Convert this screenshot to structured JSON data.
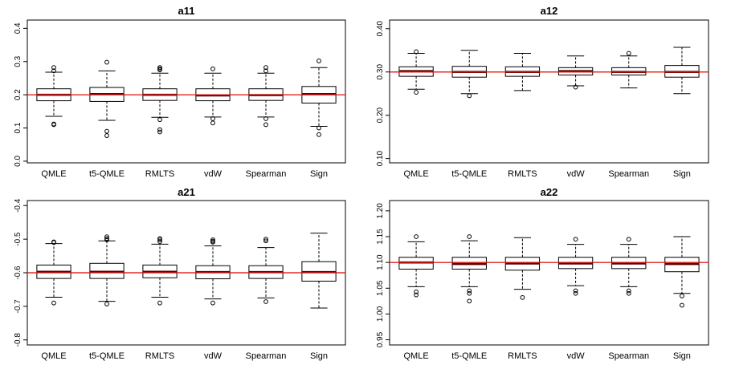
{
  "chart_data": [
    {
      "type": "boxplot",
      "title": "a11",
      "categories": [
        "QMLE",
        "t5-QMLE",
        "RMLTS",
        "vdW",
        "Spearman",
        "Sign"
      ],
      "ylim": [
        -0.005,
        0.425
      ],
      "yticks": [
        "0.0",
        "0.1",
        "0.2",
        "0.3",
        "0.4"
      ],
      "reference_line": 0.2,
      "boxes": [
        {
          "min": 0.135,
          "q1": 0.182,
          "median": 0.2,
          "q3": 0.218,
          "max": 0.268,
          "outliers": [
            0.282,
            0.272,
            0.112,
            0.11
          ]
        },
        {
          "min": 0.123,
          "q1": 0.18,
          "median": 0.202,
          "q3": 0.222,
          "max": 0.272,
          "outliers": [
            0.298,
            0.09,
            0.077
          ]
        },
        {
          "min": 0.132,
          "q1": 0.183,
          "median": 0.2,
          "q3": 0.218,
          "max": 0.265,
          "outliers": [
            0.282,
            0.278,
            0.275,
            0.125,
            0.095,
            0.088
          ]
        },
        {
          "min": 0.133,
          "q1": 0.182,
          "median": 0.198,
          "q3": 0.218,
          "max": 0.265,
          "outliers": [
            0.278,
            0.128,
            0.115
          ]
        },
        {
          "min": 0.133,
          "q1": 0.183,
          "median": 0.199,
          "q3": 0.218,
          "max": 0.265,
          "outliers": [
            0.282,
            0.272,
            0.128,
            0.11
          ]
        },
        {
          "min": 0.105,
          "q1": 0.175,
          "median": 0.202,
          "q3": 0.225,
          "max": 0.282,
          "outliers": [
            0.302,
            0.1,
            0.08
          ]
        }
      ]
    },
    {
      "type": "boxplot",
      "title": "a12",
      "categories": [
        "QMLE",
        "t5-QMLE",
        "RMLTS",
        "vdW",
        "Spearman",
        "Sign"
      ],
      "ylim": [
        0.09,
        0.42
      ],
      "yticks": [
        "0.10",
        "0.20",
        "0.30",
        "0.40"
      ],
      "reference_line": 0.3,
      "boxes": [
        {
          "min": 0.26,
          "q1": 0.29,
          "median": 0.302,
          "q3": 0.312,
          "max": 0.343,
          "outliers": [
            0.347,
            0.253
          ]
        },
        {
          "min": 0.25,
          "q1": 0.288,
          "median": 0.3,
          "q3": 0.313,
          "max": 0.35,
          "outliers": [
            0.245
          ]
        },
        {
          "min": 0.257,
          "q1": 0.29,
          "median": 0.3,
          "q3": 0.312,
          "max": 0.343,
          "outliers": []
        },
        {
          "min": 0.268,
          "q1": 0.293,
          "median": 0.302,
          "q3": 0.31,
          "max": 0.337,
          "outliers": [
            0.265
          ]
        },
        {
          "min": 0.263,
          "q1": 0.293,
          "median": 0.3,
          "q3": 0.31,
          "max": 0.337,
          "outliers": [
            0.343
          ]
        },
        {
          "min": 0.25,
          "q1": 0.288,
          "median": 0.3,
          "q3": 0.315,
          "max": 0.357,
          "outliers": []
        }
      ]
    },
    {
      "type": "boxplot",
      "title": "a21",
      "categories": [
        "QMLE",
        "t5-QMLE",
        "RMLTS",
        "vdW",
        "Spearman",
        "Sign"
      ],
      "ylim": [
        -0.815,
        -0.385
      ],
      "yticks": [
        "-0.8",
        "-0.7",
        "-0.6",
        "-0.5",
        "-0.4"
      ],
      "reference_line": -0.6,
      "boxes": [
        {
          "min": -0.673,
          "q1": -0.617,
          "median": -0.597,
          "q3": -0.577,
          "max": -0.513,
          "outliers": [
            -0.51,
            -0.508,
            -0.69
          ]
        },
        {
          "min": -0.685,
          "q1": -0.617,
          "median": -0.597,
          "q3": -0.572,
          "max": -0.505,
          "outliers": [
            -0.493,
            -0.498,
            -0.502,
            -0.693
          ]
        },
        {
          "min": -0.673,
          "q1": -0.615,
          "median": -0.597,
          "q3": -0.577,
          "max": -0.515,
          "outliers": [
            -0.498,
            -0.502,
            -0.507,
            -0.69
          ]
        },
        {
          "min": -0.678,
          "q1": -0.618,
          "median": -0.598,
          "q3": -0.579,
          "max": -0.52,
          "outliers": [
            -0.502,
            -0.506,
            -0.509,
            -0.69
          ]
        },
        {
          "min": -0.675,
          "q1": -0.617,
          "median": -0.598,
          "q3": -0.579,
          "max": -0.525,
          "outliers": [
            -0.5,
            -0.505,
            -0.686
          ]
        },
        {
          "min": -0.705,
          "q1": -0.625,
          "median": -0.598,
          "q3": -0.567,
          "max": -0.482,
          "outliers": []
        }
      ]
    },
    {
      "type": "boxplot",
      "title": "a22",
      "categories": [
        "QMLE",
        "t5-QMLE",
        "RMLTS",
        "vdW",
        "Spearman",
        "Sign"
      ],
      "ylim": [
        0.94,
        1.22
      ],
      "yticks": [
        "0.95",
        "1.00",
        "1.05",
        "1.10",
        "1.15",
        "1.20"
      ],
      "reference_line": 1.1,
      "boxes": [
        {
          "min": 1.053,
          "q1": 1.087,
          "median": 1.1,
          "q3": 1.11,
          "max": 1.14,
          "outliers": [
            1.15,
            1.043,
            1.037
          ]
        },
        {
          "min": 1.053,
          "q1": 1.087,
          "median": 1.097,
          "q3": 1.11,
          "max": 1.142,
          "outliers": [
            1.15,
            1.045,
            1.04,
            1.025
          ]
        },
        {
          "min": 1.048,
          "q1": 1.085,
          "median": 1.098,
          "q3": 1.11,
          "max": 1.148,
          "outliers": [
            1.032
          ]
        },
        {
          "min": 1.055,
          "q1": 1.088,
          "median": 1.098,
          "q3": 1.11,
          "max": 1.135,
          "outliers": [
            1.145,
            1.045,
            1.04
          ]
        },
        {
          "min": 1.053,
          "q1": 1.088,
          "median": 1.098,
          "q3": 1.11,
          "max": 1.135,
          "outliers": [
            1.145,
            1.045,
            1.04
          ]
        },
        {
          "min": 1.04,
          "q1": 1.082,
          "median": 1.097,
          "q3": 1.11,
          "max": 1.15,
          "outliers": [
            1.035,
            1.017
          ]
        }
      ]
    }
  ],
  "colors": {
    "box": "#000000",
    "median": "#5a0000",
    "reference_line": "#e0201c",
    "background": "#ffffff"
  }
}
